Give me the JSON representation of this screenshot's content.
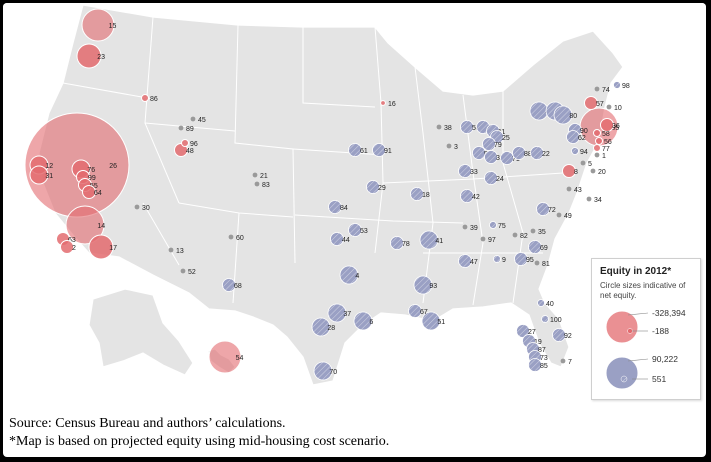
{
  "caption": {
    "source": "Source: Census Bureau and authors’ calculations.",
    "note": "*Map is based on projected equity using mid-housing cost scenario."
  },
  "legend": {
    "title": "Equity in 2012*",
    "subtitle": "Circle sizes indicative of net equity.",
    "negative_values": [
      "-328,394",
      "-188"
    ],
    "positive_values": [
      "90,222",
      "551"
    ]
  },
  "colors": {
    "negative": "#e36b6f",
    "positive": "#9aa0c4",
    "land": "#e4e4e4",
    "border": "#ffffff"
  },
  "markers": [
    {
      "label": "15",
      "sign": "negative",
      "size": 5
    },
    {
      "label": "23",
      "sign": "negative",
      "size": 4
    },
    {
      "label": "86",
      "sign": "negative",
      "size": 1
    },
    {
      "label": "45",
      "sign": "neutral",
      "size": 0
    },
    {
      "label": "89",
      "sign": "neutral",
      "size": 0
    },
    {
      "label": "96",
      "sign": "negative",
      "size": 1
    },
    {
      "label": "48",
      "sign": "negative",
      "size": 2
    },
    {
      "label": "26",
      "sign": "negative",
      "size": 10
    },
    {
      "label": "76",
      "sign": "negative",
      "size": 3
    },
    {
      "label": "12",
      "sign": "negative",
      "size": 3
    },
    {
      "label": "31",
      "sign": "negative",
      "size": 3
    },
    {
      "label": "99",
      "sign": "negative",
      "size": 2
    },
    {
      "label": "55",
      "sign": "negative",
      "size": 2
    },
    {
      "label": "64",
      "sign": "negative",
      "size": 2
    },
    {
      "label": "30",
      "sign": "neutral",
      "size": 0
    },
    {
      "label": "14",
      "sign": "negative",
      "size": 6
    },
    {
      "label": "17",
      "sign": "negative",
      "size": 4
    },
    {
      "label": "63",
      "sign": "negative",
      "size": 2
    },
    {
      "label": "2",
      "sign": "negative",
      "size": 2
    },
    {
      "label": "13",
      "sign": "neutral",
      "size": 0
    },
    {
      "label": "52",
      "sign": "neutral",
      "size": 0
    },
    {
      "label": "21",
      "sign": "neutral",
      "size": 0
    },
    {
      "label": "83",
      "sign": "neutral",
      "size": 0
    },
    {
      "label": "60",
      "sign": "neutral",
      "size": 0
    },
    {
      "label": "68",
      "sign": "positive",
      "size": 2
    },
    {
      "label": "54",
      "sign": "negative",
      "size": 5
    },
    {
      "label": "16",
      "sign": "negative",
      "size": 0
    },
    {
      "label": "61",
      "sign": "positive",
      "size": 2
    },
    {
      "label": "91",
      "sign": "positive",
      "size": 2
    },
    {
      "label": "29",
      "sign": "positive",
      "size": 2
    },
    {
      "label": "84",
      "sign": "positive",
      "size": 2
    },
    {
      "label": "18",
      "sign": "positive",
      "size": 2
    },
    {
      "label": "53",
      "sign": "positive",
      "size": 2
    },
    {
      "label": "44",
      "sign": "positive",
      "size": 2
    },
    {
      "label": "78",
      "sign": "positive",
      "size": 2
    },
    {
      "label": "41",
      "sign": "positive",
      "size": 3
    },
    {
      "label": "4",
      "sign": "positive",
      "size": 3
    },
    {
      "label": "93",
      "sign": "positive",
      "size": 3
    },
    {
      "label": "67",
      "sign": "positive",
      "size": 2
    },
    {
      "label": "37",
      "sign": "positive",
      "size": 3
    },
    {
      "label": "28",
      "sign": "positive",
      "size": 3
    },
    {
      "label": "6",
      "sign": "positive",
      "size": 3
    },
    {
      "label": "51",
      "sign": "positive",
      "size": 3
    },
    {
      "label": "70",
      "sign": "positive",
      "size": 3
    },
    {
      "label": "38",
      "sign": "neutral",
      "size": 0
    },
    {
      "label": "3",
      "sign": "neutral",
      "size": 0
    },
    {
      "label": "58",
      "sign": "positive",
      "size": 2
    },
    {
      "label": "66",
      "sign": "positive",
      "size": 2
    },
    {
      "label": "11",
      "sign": "positive",
      "size": 2
    },
    {
      "label": "25",
      "sign": "positive",
      "size": 2
    },
    {
      "label": "79",
      "sign": "positive",
      "size": 2
    },
    {
      "label": "59",
      "sign": "positive",
      "size": 2
    },
    {
      "label": "32",
      "sign": "positive",
      "size": 2
    },
    {
      "label": "71",
      "sign": "positive",
      "size": 2
    },
    {
      "label": "88",
      "sign": "positive",
      "size": 2
    },
    {
      "label": "22",
      "sign": "positive",
      "size": 2
    },
    {
      "label": "33",
      "sign": "positive",
      "size": 2
    },
    {
      "label": "24",
      "sign": "positive",
      "size": 2
    },
    {
      "label": "42",
      "sign": "positive",
      "size": 2
    },
    {
      "label": "39",
      "sign": "neutral",
      "size": 0
    },
    {
      "label": "75",
      "sign": "positive",
      "size": 1
    },
    {
      "label": "97",
      "sign": "neutral",
      "size": 0
    },
    {
      "label": "47",
      "sign": "positive",
      "size": 2
    },
    {
      "label": "9",
      "sign": "positive",
      "size": 1
    },
    {
      "label": "95",
      "sign": "positive",
      "size": 2
    },
    {
      "label": "81",
      "sign": "neutral",
      "size": 0
    },
    {
      "label": "82",
      "sign": "neutral",
      "size": 0
    },
    {
      "label": "35",
      "sign": "neutral",
      "size": 0
    },
    {
      "label": "69",
      "sign": "positive",
      "size": 2
    },
    {
      "label": "72",
      "sign": "positive",
      "size": 2
    },
    {
      "label": "49",
      "sign": "neutral",
      "size": 0
    },
    {
      "label": "34",
      "sign": "neutral",
      "size": 0
    },
    {
      "label": "43",
      "sign": "neutral",
      "size": 0
    },
    {
      "label": "8",
      "sign": "negative",
      "size": 2
    },
    {
      "label": "94",
      "sign": "positive",
      "size": 1
    },
    {
      "label": "46",
      "sign": "positive",
      "size": 3
    },
    {
      "label": "50",
      "sign": "positive",
      "size": 3
    },
    {
      "label": "80",
      "sign": "positive",
      "size": 3
    },
    {
      "label": "90",
      "sign": "positive",
      "size": 2
    },
    {
      "label": "62",
      "sign": "positive",
      "size": 2
    },
    {
      "label": "74",
      "sign": "neutral",
      "size": 0
    },
    {
      "label": "98",
      "sign": "positive",
      "size": 1
    },
    {
      "label": "57",
      "sign": "negative",
      "size": 2
    },
    {
      "label": "10",
      "sign": "neutral",
      "size": 0
    },
    {
      "label": "65",
      "sign": "negative",
      "size": 6
    },
    {
      "label": "36",
      "sign": "negative",
      "size": 2
    },
    {
      "label": "58b",
      "sign": "negative",
      "size": 1
    },
    {
      "label": "56",
      "sign": "negative",
      "size": 1
    },
    {
      "label": "77",
      "sign": "negative",
      "size": 1
    },
    {
      "label": "1",
      "sign": "neutral",
      "size": 0
    },
    {
      "label": "5",
      "sign": "neutral",
      "size": 0
    },
    {
      "label": "20",
      "sign": "neutral",
      "size": 0
    },
    {
      "label": "40",
      "sign": "positive",
      "size": 1
    },
    {
      "label": "100",
      "sign": "positive",
      "size": 1
    },
    {
      "label": "27",
      "sign": "positive",
      "size": 2
    },
    {
      "label": "19",
      "sign": "positive",
      "size": 2
    },
    {
      "label": "87",
      "sign": "positive",
      "size": 2
    },
    {
      "label": "73",
      "sign": "positive",
      "size": 2
    },
    {
      "label": "85",
      "sign": "positive",
      "size": 2
    },
    {
      "label": "92",
      "sign": "positive",
      "size": 2
    },
    {
      "label": "7",
      "sign": "neutral",
      "size": 0
    }
  ]
}
